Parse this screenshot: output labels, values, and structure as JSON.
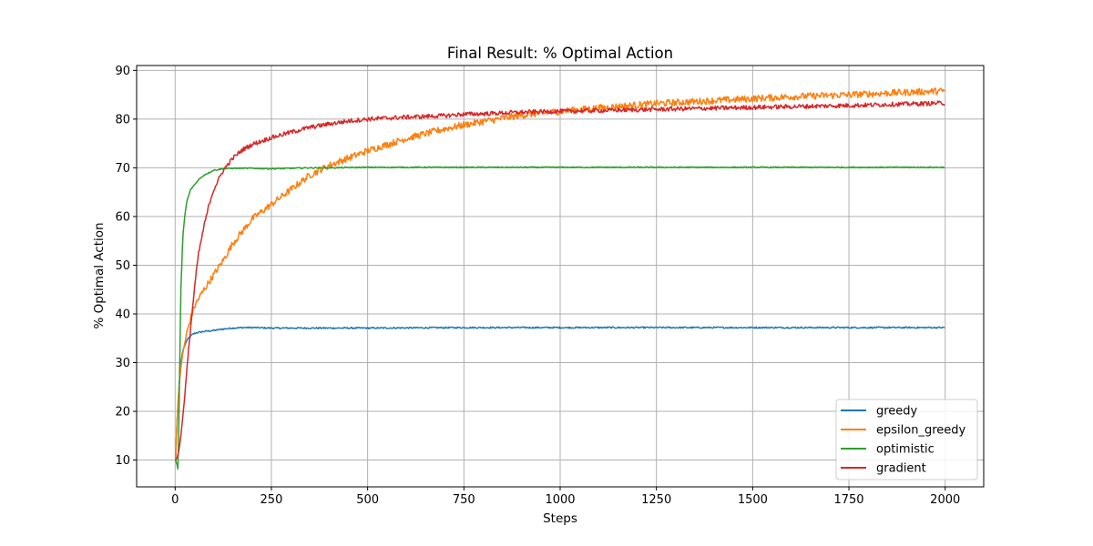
{
  "chart_data": {
    "type": "line",
    "title": "Final Result: % Optimal Action",
    "xlabel": "Steps",
    "ylabel": "% Optimal Action",
    "xlim": [
      -100,
      2100
    ],
    "ylim": [
      4.5,
      91
    ],
    "xticks": [
      0,
      250,
      500,
      750,
      1000,
      1250,
      1500,
      1750,
      2000
    ],
    "yticks": [
      10,
      20,
      30,
      40,
      50,
      60,
      70,
      80,
      90
    ],
    "grid": true,
    "legend_position": "lower-right",
    "series": [
      {
        "name": "greedy",
        "color": "#1f77b4",
        "noise": 0.15,
        "x": [
          1,
          5,
          10,
          15,
          20,
          30,
          40,
          50,
          60,
          75,
          100,
          125,
          150,
          175,
          200,
          250,
          300,
          400,
          500,
          750,
          1000,
          1250,
          1500,
          1750,
          2000
        ],
        "y": [
          10,
          18,
          25,
          30,
          32.5,
          34.5,
          35.5,
          36,
          36.2,
          36.4,
          36.6,
          36.9,
          37.1,
          37.2,
          37.2,
          37.1,
          37.1,
          37.1,
          37.1,
          37.2,
          37.2,
          37.2,
          37.2,
          37.2,
          37.2
        ]
      },
      {
        "name": "epsilon_greedy",
        "color": "#ff7f0e",
        "noise": 0.7,
        "x": [
          1,
          5,
          10,
          15,
          20,
          30,
          40,
          50,
          60,
          75,
          100,
          125,
          150,
          175,
          200,
          250,
          300,
          350,
          400,
          450,
          500,
          600,
          700,
          750,
          800,
          900,
          1000,
          1100,
          1250,
          1400,
          1500,
          1600,
          1750,
          1900,
          2000
        ],
        "y": [
          10,
          18,
          25,
          29,
          32,
          36,
          39,
          41.5,
          43,
          45,
          48,
          51,
          54.5,
          57,
          59.5,
          62.5,
          65.5,
          68.5,
          70.5,
          72,
          73.5,
          76,
          78,
          78.8,
          79.5,
          80.8,
          81.6,
          82.3,
          83.2,
          83.8,
          84.2,
          84.6,
          85,
          85.5,
          85.8
        ]
      },
      {
        "name": "optimistic",
        "color": "#2ca02c",
        "noise": 0.12,
        "x": [
          1,
          3,
          5,
          7,
          9,
          12,
          15,
          20,
          25,
          30,
          40,
          50,
          60,
          75,
          100,
          125,
          150,
          200,
          250,
          300,
          350,
          400,
          500,
          750,
          1000,
          1250,
          1500,
          1750,
          2000
        ],
        "y": [
          10,
          9.5,
          9,
          8.2,
          14,
          30,
          45,
          56,
          60,
          63,
          65.5,
          66.5,
          67.5,
          68.5,
          69.5,
          69.8,
          69.9,
          69.9,
          69.8,
          69.9,
          70,
          70,
          70.1,
          70.1,
          70.1,
          70.1,
          70.1,
          70.1,
          70.1
        ]
      },
      {
        "name": "gradient",
        "color": "#d62728",
        "noise": 0.45,
        "x": [
          1,
          5,
          10,
          15,
          20,
          25,
          30,
          40,
          50,
          60,
          75,
          90,
          100,
          125,
          150,
          175,
          200,
          250,
          300,
          350,
          400,
          450,
          500,
          600,
          700,
          750,
          800,
          900,
          1000,
          1250,
          1500,
          1750,
          2000
        ],
        "y": [
          10,
          10.5,
          12,
          15,
          19,
          23,
          28,
          37,
          45,
          52,
          58,
          63,
          65.5,
          69.5,
          72,
          73.7,
          74.8,
          76.2,
          77.3,
          78.3,
          79,
          79.6,
          80,
          80.4,
          80.7,
          81,
          81.1,
          81.4,
          81.6,
          82,
          82.4,
          82.8,
          83.3
        ]
      }
    ]
  }
}
